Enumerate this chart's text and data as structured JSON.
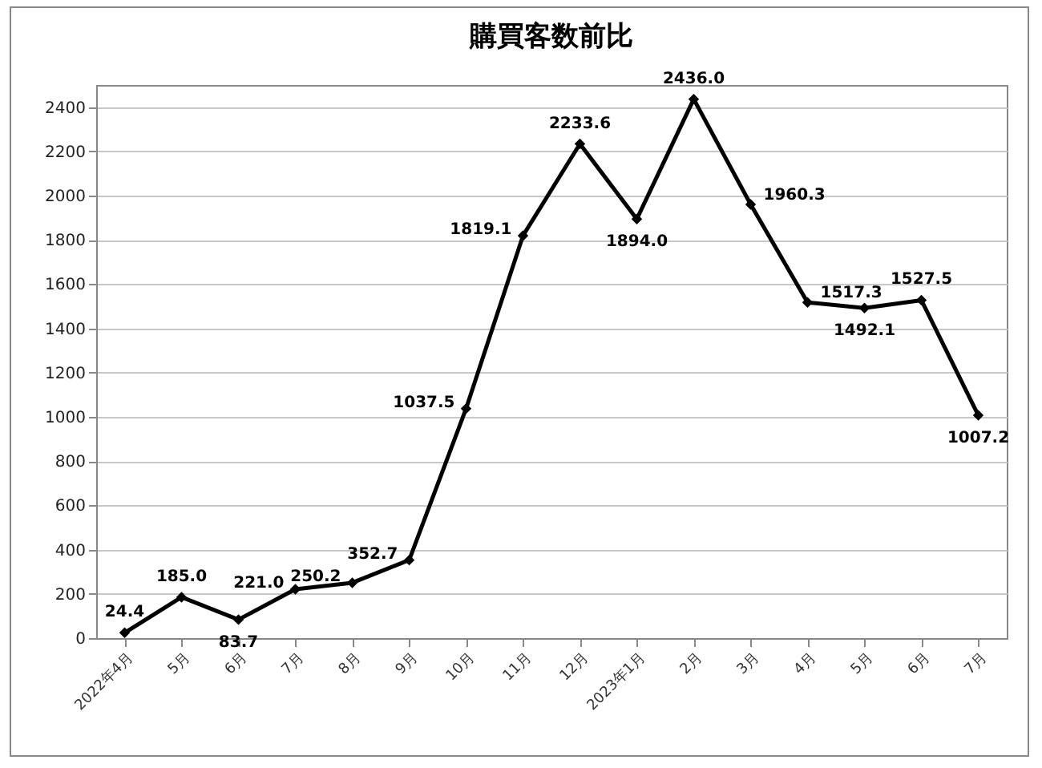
{
  "chart_data": {
    "type": "line",
    "title": "購買客数前比",
    "categories": [
      "2022年4月",
      "5月",
      "6月",
      "7月",
      "8月",
      "9月",
      "10月",
      "11月",
      "12月",
      "2023年1月",
      "2月",
      "3月",
      "4月",
      "5月",
      "6月",
      "7月"
    ],
    "series": [
      {
        "color": "#000000",
        "values": [
          24.4,
          185.0,
          83.7,
          221.0,
          250.2,
          352.7,
          1037.5,
          1819.1,
          2233.6,
          1894.0,
          2436.0,
          1960.3,
          1517.3,
          1492.1,
          1527.5,
          1007.2
        ],
        "value_labels": [
          "24.4",
          "185.0",
          "83.7",
          "221.0",
          "250.2",
          "352.7",
          "1037.5",
          "1819.1",
          "2233.6",
          "1894.0",
          "2436.0",
          "1960.3",
          "1517.3",
          "1492.1",
          "1527.5",
          "1007.2"
        ]
      }
    ],
    "ylim": [
      0,
      2500
    ],
    "yticks": [
      0,
      200,
      400,
      600,
      800,
      1000,
      1200,
      1400,
      1600,
      1800,
      2000,
      2200,
      2400
    ],
    "grid": "y",
    "marker": "diamond",
    "line_style": "solid"
  }
}
